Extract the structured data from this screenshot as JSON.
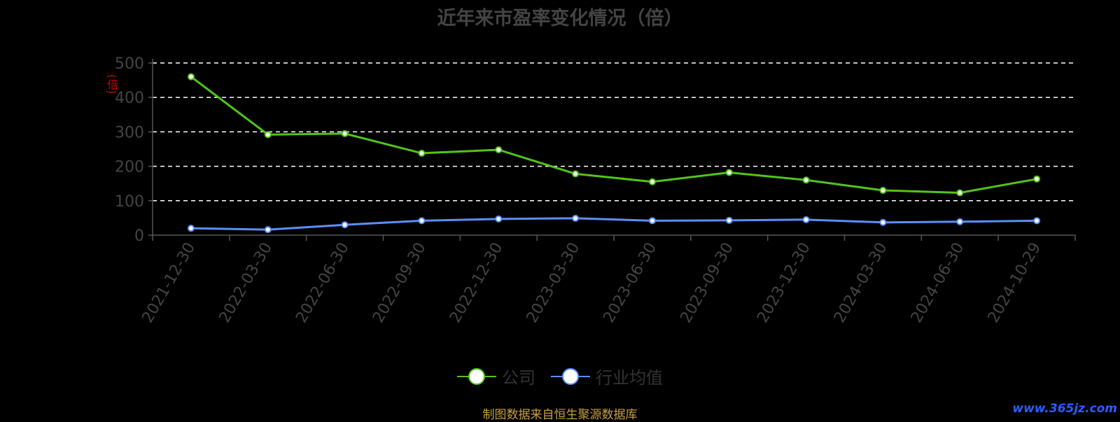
{
  "title": "近年来市盈率变化情况（倍）",
  "source": "制图数据来自恒生聚源数据库",
  "watermark": "www.365jz.com",
  "chart_data": {
    "type": "line",
    "x": [
      "2021-12-30",
      "2022-03-30",
      "2022-06-30",
      "2022-09-30",
      "2022-12-30",
      "2023-03-30",
      "2023-06-30",
      "2023-09-30",
      "2023-12-30",
      "2024-03-30",
      "2024-06-30",
      "2024-10-29"
    ],
    "series": [
      {
        "name": "公司",
        "color": "#52c41a",
        "values": [
          460,
          292,
          295,
          238,
          248,
          178,
          155,
          182,
          160,
          130,
          123,
          163
        ]
      },
      {
        "name": "行业均值",
        "color": "#5b8ff9",
        "values": [
          20,
          16,
          30,
          42,
          47,
          49,
          42,
          43,
          45,
          37,
          39,
          42
        ]
      }
    ],
    "ylabel": "(倍)",
    "ylim": [
      0,
      500
    ],
    "yticks": [
      0,
      100,
      200,
      300,
      400,
      500
    ],
    "grid": true,
    "legend_position": "bottom"
  }
}
